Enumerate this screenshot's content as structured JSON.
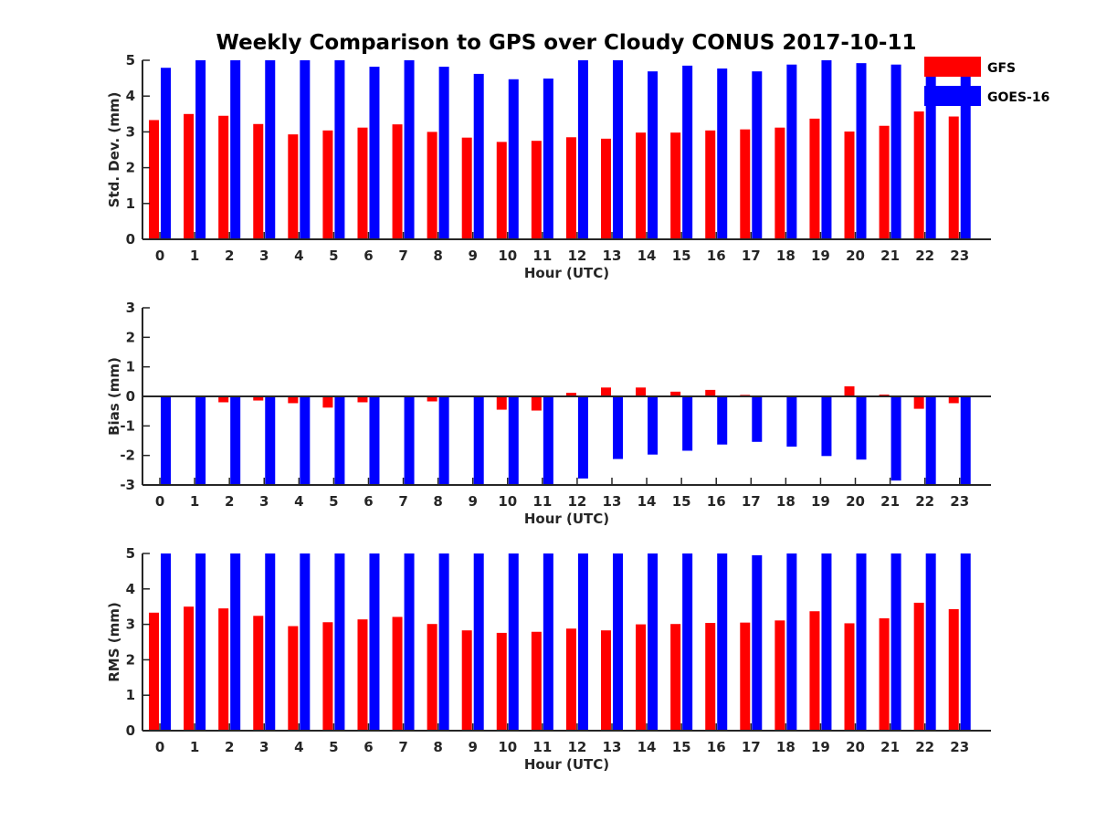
{
  "figure": {
    "title": "Weekly Comparison to GPS over Cloudy CONUS 2017-10-11"
  },
  "legend": {
    "placement": "top-right, outside",
    "entries": [
      {
        "label": "GFS",
        "color": "#ff0000"
      },
      {
        "label": "GOES-16",
        "color": "#0000ff"
      }
    ]
  },
  "chart_data": [
    {
      "type": "bar",
      "xlabel": "Hour (UTC)",
      "ylabel": "Std. Dev. (mm)",
      "ylim": [
        0,
        5
      ],
      "yticks": [
        0,
        1,
        2,
        3,
        4,
        5
      ],
      "categories": [
        "0",
        "1",
        "2",
        "3",
        "4",
        "5",
        "6",
        "7",
        "8",
        "9",
        "10",
        "11",
        "12",
        "13",
        "14",
        "15",
        "16",
        "17",
        "18",
        "19",
        "20",
        "21",
        "22",
        "23"
      ],
      "series": [
        {
          "name": "GFS",
          "color": "#ff0000",
          "values": [
            3.33,
            3.5,
            3.45,
            3.22,
            2.93,
            3.04,
            3.12,
            3.21,
            3.0,
            2.84,
            2.72,
            2.75,
            2.85,
            2.81,
            2.98,
            2.98,
            3.04,
            3.07,
            3.12,
            3.37,
            3.01,
            3.17,
            3.57,
            3.43
          ]
        },
        {
          "name": "GOES-16",
          "color": "#0000ff",
          "values": [
            4.79,
            5.0,
            5.0,
            5.0,
            5.0,
            5.0,
            4.82,
            5.0,
            4.82,
            4.62,
            4.47,
            4.49,
            5.0,
            5.0,
            4.69,
            4.85,
            4.77,
            4.69,
            4.88,
            5.0,
            4.92,
            4.88,
            5.0,
            4.7
          ]
        }
      ]
    },
    {
      "type": "bar",
      "xlabel": "Hour (UTC)",
      "ylabel": "Bias (mm)",
      "ylim": [
        -3,
        3
      ],
      "yticks": [
        -3,
        -2,
        -1,
        0,
        1,
        2,
        3
      ],
      "categories": [
        "0",
        "1",
        "2",
        "3",
        "4",
        "5",
        "6",
        "7",
        "8",
        "9",
        "10",
        "11",
        "12",
        "13",
        "14",
        "15",
        "16",
        "17",
        "18",
        "19",
        "20",
        "21",
        "22",
        "23"
      ],
      "series": [
        {
          "name": "GFS",
          "color": "#ff0000",
          "values": [
            -0.02,
            0.02,
            -0.2,
            -0.14,
            -0.23,
            -0.38,
            -0.2,
            -0.03,
            -0.17,
            -0.03,
            -0.45,
            -0.48,
            0.12,
            0.3,
            0.3,
            0.16,
            0.22,
            0.05,
            -0.02,
            -0.02,
            0.34,
            0.06,
            -0.42,
            -0.23
          ]
        },
        {
          "name": "GOES-16",
          "color": "#0000ff",
          "values": [
            -3.0,
            -3.0,
            -3.0,
            -3.0,
            -3.0,
            -3.0,
            -3.0,
            -3.0,
            -3.0,
            -3.0,
            -3.0,
            -3.0,
            -2.78,
            -2.12,
            -1.97,
            -1.84,
            -1.63,
            -1.54,
            -1.7,
            -2.02,
            -2.14,
            -2.85,
            -3.0,
            -3.0
          ]
        }
      ]
    },
    {
      "type": "bar",
      "xlabel": "Hour (UTC)",
      "ylabel": "RMS (mm)",
      "ylim": [
        0,
        5
      ],
      "yticks": [
        0,
        1,
        2,
        3,
        4,
        5
      ],
      "categories": [
        "0",
        "1",
        "2",
        "3",
        "4",
        "5",
        "6",
        "7",
        "8",
        "9",
        "10",
        "11",
        "12",
        "13",
        "14",
        "15",
        "16",
        "17",
        "18",
        "19",
        "20",
        "21",
        "22",
        "23"
      ],
      "series": [
        {
          "name": "GFS",
          "color": "#ff0000",
          "values": [
            3.33,
            3.5,
            3.45,
            3.24,
            2.95,
            3.06,
            3.14,
            3.21,
            3.01,
            2.83,
            2.76,
            2.79,
            2.88,
            2.83,
            3.0,
            3.01,
            3.04,
            3.05,
            3.11,
            3.37,
            3.03,
            3.17,
            3.61,
            3.43
          ]
        },
        {
          "name": "GOES-16",
          "color": "#0000ff",
          "values": [
            5.0,
            5.0,
            5.0,
            5.0,
            5.0,
            5.0,
            5.0,
            5.0,
            5.0,
            5.0,
            5.0,
            5.0,
            5.0,
            5.0,
            5.0,
            5.0,
            5.0,
            4.95,
            5.0,
            5.0,
            5.0,
            5.0,
            5.0,
            5.0
          ]
        }
      ]
    }
  ]
}
